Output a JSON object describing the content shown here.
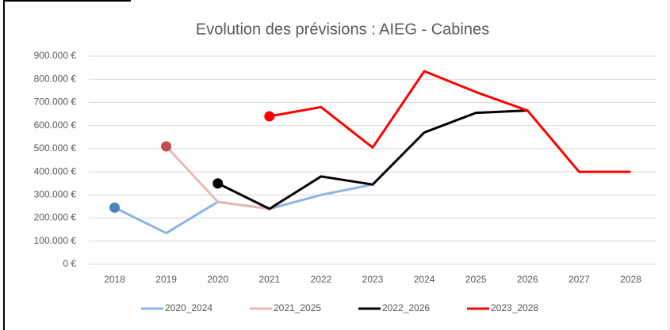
{
  "chart_data": {
    "type": "line",
    "title": "Evolution des prévisions : AIEG - Cabines",
    "categories": [
      "2018",
      "2019",
      "2020",
      "2021",
      "2022",
      "2023",
      "2024",
      "2025",
      "2026",
      "2027",
      "2028"
    ],
    "series": [
      {
        "name": "2020_2024",
        "color": "#8eb4e3",
        "marker_color": "#4f81bd",
        "values": [
          245000,
          135000,
          270000,
          240000,
          300000,
          345000,
          null,
          null,
          null,
          null,
          null
        ]
      },
      {
        "name": "2021_2025",
        "color": "#e6b9b8",
        "marker_color": "#c0504d",
        "values": [
          null,
          510000,
          270000,
          240000,
          null,
          null,
          null,
          null,
          null,
          null,
          null
        ]
      },
      {
        "name": "2022_2026",
        "color": "#000000",
        "marker_color": "#000000",
        "values": [
          null,
          null,
          350000,
          240000,
          380000,
          345000,
          570000,
          655000,
          665000,
          null,
          null
        ]
      },
      {
        "name": "2023_2028",
        "color": "#ff0000",
        "marker_color": "#ff0000",
        "values": [
          null,
          null,
          null,
          640000,
          680000,
          505000,
          835000,
          745000,
          665000,
          400000,
          400000
        ]
      }
    ],
    "ylim": [
      0,
      900000
    ],
    "yticks": [
      {
        "value": 0,
        "label": "0 €"
      },
      {
        "value": 100000,
        "label": "100.000 €"
      },
      {
        "value": 200000,
        "label": "200.000 €"
      },
      {
        "value": 300000,
        "label": "300.000 €"
      },
      {
        "value": 400000,
        "label": "400.000 €"
      },
      {
        "value": 500000,
        "label": "500.000 €"
      },
      {
        "value": 600000,
        "label": "600.000 €"
      },
      {
        "value": 700000,
        "label": "700.000 €"
      },
      {
        "value": 800000,
        "label": "800.000 €"
      },
      {
        "value": 900000,
        "label": "900.000 €"
      }
    ],
    "grid": true,
    "legend": "bottom"
  }
}
